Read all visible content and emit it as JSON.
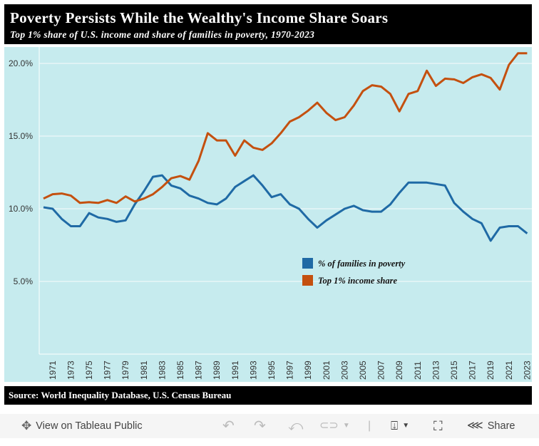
{
  "header": {
    "title": "Poverty Persists While the Wealthy's Income Share Soars",
    "subtitle": "Top 1% share of U.S. income and share of families in poverty, 1970-2023"
  },
  "source": "Source: World Inequality Database, U.S. Census Bureau",
  "toolbar": {
    "view_label": "View on Tableau Public",
    "share_label": "Share",
    "icons": [
      "tableau-logo-icon",
      "undo-icon",
      "redo-icon",
      "revert-icon",
      "refresh-icon",
      "download-icon",
      "fullscreen-icon",
      "share-icon"
    ]
  },
  "chart_data": {
    "type": "line",
    "ylim": [
      0,
      21
    ],
    "yticks": [
      "5.0%",
      "10.0%",
      "15.0%",
      "20.0%"
    ],
    "ytick_values": [
      5,
      10,
      15,
      20
    ],
    "xtick_labels": [
      "1971",
      "1973",
      "1975",
      "1977",
      "1979",
      "1981",
      "1983",
      "1985",
      "1987",
      "1989",
      "1991",
      "1993",
      "1995",
      "1997",
      "1999",
      "2001",
      "2003",
      "2005",
      "2007",
      "2009",
      "2011",
      "2013",
      "2015",
      "2017",
      "2019",
      "2021",
      "2023"
    ],
    "grid": true,
    "legend_placement": "center-right",
    "x": [
      1970,
      1971,
      1972,
      1973,
      1974,
      1975,
      1976,
      1977,
      1978,
      1979,
      1980,
      1981,
      1982,
      1983,
      1984,
      1985,
      1986,
      1987,
      1988,
      1989,
      1990,
      1991,
      1992,
      1993,
      1994,
      1995,
      1996,
      1997,
      1998,
      1999,
      2000,
      2001,
      2002,
      2003,
      2004,
      2005,
      2006,
      2007,
      2008,
      2009,
      2010,
      2011,
      2012,
      2013,
      2014,
      2015,
      2016,
      2017,
      2018,
      2019,
      2020,
      2021,
      2022,
      2023
    ],
    "series": [
      {
        "name": "% of families in poverty",
        "color": "#1f6aa5",
        "values": [
          10.1,
          10.0,
          9.3,
          8.8,
          8.8,
          9.7,
          9.4,
          9.3,
          9.1,
          9.2,
          10.3,
          11.2,
          12.2,
          12.3,
          11.6,
          11.4,
          10.9,
          10.7,
          10.4,
          10.3,
          10.7,
          11.5,
          11.9,
          12.3,
          11.6,
          10.8,
          11.0,
          10.3,
          10.0,
          9.3,
          8.7,
          9.2,
          9.6,
          10.0,
          10.2,
          9.9,
          9.8,
          9.8,
          10.3,
          11.1,
          11.8,
          11.8,
          11.8,
          11.7,
          11.6,
          10.4,
          9.8,
          9.3,
          9.0,
          7.8,
          8.7,
          8.8,
          8.8,
          8.3
        ]
      },
      {
        "name": "Top 1% income share",
        "color": "#c4500f",
        "values": [
          10.7,
          11.0,
          11.05,
          10.9,
          10.4,
          10.45,
          10.4,
          10.6,
          10.4,
          10.85,
          10.5,
          10.7,
          11.0,
          11.5,
          12.1,
          12.25,
          12.0,
          13.3,
          15.2,
          14.7,
          14.7,
          13.65,
          14.7,
          14.2,
          14.05,
          14.5,
          15.2,
          16.0,
          16.3,
          16.75,
          17.3,
          16.6,
          16.1,
          16.3,
          17.1,
          18.1,
          18.5,
          18.4,
          17.9,
          16.7,
          17.9,
          18.1,
          19.5,
          18.45,
          18.95,
          18.9,
          18.65,
          19.05,
          19.25,
          19.0,
          18.2,
          19.9,
          20.7,
          20.7
        ]
      }
    ]
  }
}
